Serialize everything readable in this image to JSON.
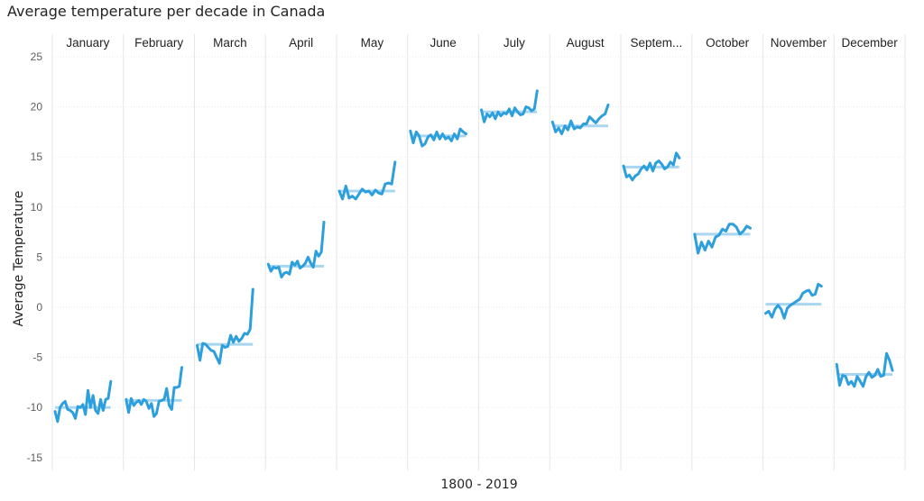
{
  "chart_data": {
    "type": "line",
    "title": "Average temperature per decade in Canada",
    "xlabel": "1800 - 2019",
    "ylabel": "Average Temperature",
    "ylim": [
      -17,
      25
    ],
    "yticks": [
      25,
      20,
      15,
      10,
      5,
      0,
      -5,
      -10,
      -15
    ],
    "grid": true,
    "colors": {
      "series": "#2d9fdd",
      "average": "#a8d5f0"
    },
    "panels": [
      {
        "month": "January",
        "average": -10.0,
        "values": [
          -10.4,
          -11.4,
          -10.0,
          -9.6,
          -9.4,
          -10.2,
          -10.3,
          -10.5,
          -11.1,
          -9.9,
          -10.0,
          -9.7,
          -10.7,
          -8.3,
          -10.0,
          -8.8,
          -10.3,
          -10.6,
          -9.2,
          -10.3,
          -9.2,
          -9.1,
          -7.4
        ]
      },
      {
        "month": "February",
        "average": -9.3,
        "values": [
          -9.2,
          -10.5,
          -9.1,
          -9.8,
          -9.5,
          -9.3,
          -9.7,
          -9.2,
          -9.4,
          -10.1,
          -9.6,
          -10.9,
          -10.6,
          -9.4,
          -9.3,
          -9.2,
          -8.1,
          -9.8,
          -10.2,
          -8.0,
          -8.0,
          -7.9,
          -6.0
        ]
      },
      {
        "month": "March",
        "average": -3.7,
        "values": [
          -3.8,
          -5.3,
          -3.6,
          -3.7,
          -4.0,
          -4.3,
          -4.4,
          -5.0,
          -5.6,
          -3.8,
          -4.0,
          -3.9,
          -2.8,
          -3.5,
          -2.9,
          -3.4,
          -3.1,
          -2.6,
          -2.7,
          -2.2,
          1.8
        ]
      },
      {
        "month": "April",
        "average": 4.1,
        "values": [
          4.3,
          3.6,
          4.0,
          3.9,
          4.0,
          3.0,
          3.4,
          3.5,
          3.3,
          4.5,
          4.2,
          4.6,
          3.9,
          4.1,
          4.4,
          5.0,
          4.4,
          4.0,
          5.6,
          5.1,
          5.5,
          8.5
        ]
      },
      {
        "month": "May",
        "average": 11.6,
        "values": [
          11.6,
          10.8,
          12.1,
          10.9,
          11.1,
          10.8,
          11.3,
          11.8,
          11.5,
          11.6,
          11.2,
          11.7,
          11.4,
          11.3,
          12.3,
          12.4,
          12.3,
          14.5
        ]
      },
      {
        "month": "June",
        "average": 17.1,
        "values": [
          17.6,
          16.4,
          17.5,
          17.1,
          16.1,
          16.3,
          17.0,
          17.2,
          16.7,
          17.5,
          16.8,
          17.3,
          16.8,
          17.0,
          16.6,
          17.3,
          16.8,
          17.8,
          17.5,
          17.3
        ]
      },
      {
        "month": "July",
        "average": 19.5,
        "values": [
          19.7,
          18.5,
          19.3,
          19.0,
          19.4,
          18.8,
          19.5,
          19.1,
          19.4,
          19.3,
          19.8,
          19.1,
          19.9,
          19.5,
          19.2,
          19.3,
          20.0,
          19.9,
          19.6,
          19.8,
          21.6
        ]
      },
      {
        "month": "August",
        "average": 18.1,
        "values": [
          18.5,
          17.5,
          17.9,
          17.3,
          18.1,
          17.7,
          18.6,
          17.8,
          18.0,
          17.9,
          18.3,
          18.3,
          19.0,
          18.7,
          18.4,
          18.8,
          19.1,
          19.3,
          20.2
        ]
      },
      {
        "month": "September",
        "average": 14.0,
        "values": [
          14.1,
          13.0,
          13.2,
          12.7,
          13.1,
          13.3,
          13.8,
          14.1,
          13.7,
          14.4,
          13.6,
          14.4,
          14.6,
          14.3,
          13.8,
          14.0,
          14.5,
          14.2,
          15.4,
          14.9
        ]
      },
      {
        "month": "October",
        "average": 7.3,
        "values": [
          7.3,
          5.4,
          6.5,
          5.7,
          6.6,
          6.0,
          7.0,
          7.2,
          7.8,
          7.6,
          8.3,
          8.3,
          8.0,
          7.3,
          7.6,
          8.1,
          7.9
        ]
      },
      {
        "month": "November",
        "average": 0.3,
        "values": [
          -0.6,
          -0.4,
          -1.0,
          -0.2,
          0.2,
          -0.2,
          -1.1,
          -0.1,
          0.2,
          0.4,
          0.6,
          0.8,
          1.4,
          1.6,
          1.7,
          1.2,
          1.3,
          2.3,
          2.1
        ]
      },
      {
        "month": "December",
        "average": -6.7,
        "values": [
          -5.7,
          -7.8,
          -6.8,
          -6.9,
          -7.7,
          -7.4,
          -7.9,
          -6.9,
          -7.4,
          -7.9,
          -6.9,
          -6.5,
          -7.0,
          -6.8,
          -6.2,
          -6.9,
          -6.8,
          -4.6,
          -5.3,
          -6.3
        ]
      }
    ]
  }
}
